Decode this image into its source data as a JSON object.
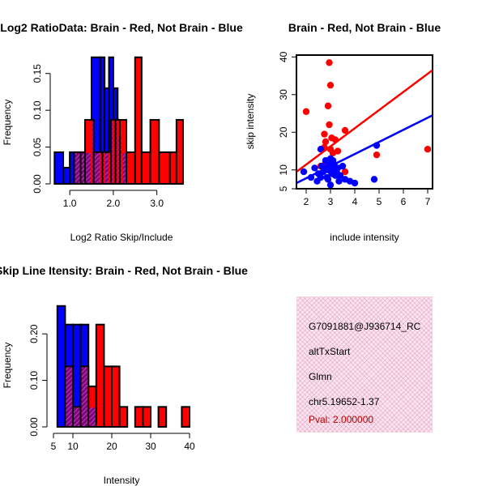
{
  "chart_data": [
    {
      "id": "ratio",
      "type": "histogram",
      "title": "Log2 RatioData: Brain - Red, Not Brain - Blue",
      "xlabel": "Log2 Ratio Skip/Include",
      "ylabel": "Frequency",
      "xlim": [
        0.7,
        3.75
      ],
      "ylim": [
        0,
        0.175
      ],
      "xticks": [
        1.0,
        2.0,
        3.0
      ],
      "xtick_labels": [
        "1.0",
        "2.0",
        "3.0"
      ],
      "yticks": [
        0.0,
        0.05,
        0.1,
        0.15
      ],
      "ytick_labels": [
        "0.00",
        "0.05",
        "0.10",
        "0.15"
      ],
      "series": [
        {
          "name": "Not Brain",
          "color": "#0000ff",
          "bin_edges": [
            0.65,
            0.85,
            1.0,
            1.1,
            1.25,
            1.35,
            1.5,
            1.7,
            1.8,
            1.9,
            2.0,
            2.1,
            2.2,
            2.3
          ],
          "values": [
            0.043,
            0.022,
            0.043,
            0.043,
            0.043,
            0.043,
            0.172,
            0.172,
            0.13,
            0.172,
            0.13,
            0.065,
            0.043
          ]
        },
        {
          "name": "Brain",
          "color": "#ff0000",
          "bin_edges": [
            1.1,
            1.25,
            1.35,
            1.55,
            1.75,
            1.95,
            2.05,
            2.15,
            2.3,
            2.5,
            2.65,
            2.85,
            3.05,
            3.3,
            3.45,
            3.6
          ],
          "values": [
            0.043,
            0.043,
            0.087,
            0.043,
            0.043,
            0.087,
            0.087,
            0.087,
            0.043,
            0.172,
            0.043,
            0.087,
            0.043,
            0.043,
            0.087
          ]
        }
      ]
    },
    {
      "id": "scatter",
      "type": "scatter",
      "title": "Brain - Red, Not Brain - Blue",
      "xlabel": "include intensity",
      "ylabel": "skip intensity",
      "xlim": [
        1.6,
        7.2
      ],
      "ylim": [
        5,
        40.5
      ],
      "xticks": [
        2,
        3,
        4,
        5,
        6,
        7
      ],
      "xtick_labels": [
        "2",
        "3",
        "4",
        "5",
        "6",
        "7"
      ],
      "yticks": [
        5,
        10,
        20,
        30,
        40
      ],
      "ytick_labels": [
        "5",
        "10",
        "20",
        "30",
        "40"
      ],
      "series": [
        {
          "name": "Brain",
          "color": "#ff0000",
          "points": [
            [
              2.0,
              25.5
            ],
            [
              2.95,
              38.5
            ],
            [
              3.0,
              32.5
            ],
            [
              2.9,
              27.0
            ],
            [
              2.95,
              22.0
            ],
            [
              3.05,
              18.5
            ],
            [
              3.2,
              18.0
            ],
            [
              2.75,
              19.5
            ],
            [
              2.8,
              17.5
            ],
            [
              2.75,
              16.0
            ],
            [
              3.0,
              15.5
            ],
            [
              3.1,
              14.5
            ],
            [
              3.3,
              15.0
            ],
            [
              3.6,
              20.5
            ],
            [
              4.9,
              14.0
            ],
            [
              7.0,
              15.5
            ],
            [
              3.6,
              9.5
            ],
            [
              2.8,
              12.0
            ],
            [
              2.6,
              11.0
            ]
          ],
          "fit": [
            [
              1.6,
              9.5
            ],
            [
              7.2,
              36.5
            ]
          ]
        },
        {
          "name": "Not Brain",
          "color": "#0000ff",
          "points": [
            [
              1.9,
              9.5
            ],
            [
              2.2,
              8.0
            ],
            [
              2.35,
              10.5
            ],
            [
              2.45,
              7.0
            ],
            [
              2.5,
              9.0
            ],
            [
              2.6,
              8.0
            ],
            [
              2.65,
              11.0
            ],
            [
              2.7,
              9.5
            ],
            [
              2.75,
              10.5
            ],
            [
              2.8,
              12.5
            ],
            [
              2.85,
              8.0
            ],
            [
              2.9,
              10.0
            ],
            [
              2.95,
              11.5
            ],
            [
              3.0,
              13.0
            ],
            [
              3.05,
              9.0
            ],
            [
              3.1,
              10.0
            ],
            [
              3.15,
              11.5
            ],
            [
              3.2,
              8.5
            ],
            [
              3.25,
              9.5
            ],
            [
              3.3,
              10.5
            ],
            [
              3.35,
              7.0
            ],
            [
              3.5,
              11.0
            ],
            [
              3.6,
              7.5
            ],
            [
              3.8,
              7.0
            ],
            [
              4.0,
              6.5
            ],
            [
              4.8,
              7.5
            ],
            [
              4.9,
              16.5
            ],
            [
              2.6,
              15.5
            ],
            [
              3.0,
              6.0
            ],
            [
              2.9,
              7.5
            ],
            [
              3.1,
              12.5
            ],
            [
              3.4,
              8.5
            ]
          ],
          "fit": [
            [
              1.6,
              6.5
            ],
            [
              7.2,
              24.5
            ]
          ]
        }
      ]
    },
    {
      "id": "intensity",
      "type": "histogram",
      "title": "Skip Line Itensity: Brain - Red, Not Brain - Blue",
      "xlabel": "Intensity",
      "ylabel": "Frequency",
      "xlim": [
        5,
        40
      ],
      "ylim": [
        0,
        0.27
      ],
      "xticks": [
        5,
        10,
        20,
        30,
        40
      ],
      "xtick_labels": [
        "5",
        "10",
        "20",
        "30",
        "40"
      ],
      "yticks": [
        0.0,
        0.1,
        0.2
      ],
      "ytick_labels": [
        "0.00",
        "0.10",
        "0.20"
      ],
      "series": [
        {
          "name": "Not Brain",
          "color": "#0000ff",
          "bin_edges": [
            6,
            8,
            10,
            12,
            14,
            16
          ],
          "values": [
            0.26,
            0.22,
            0.22,
            0.22,
            0.043
          ]
        },
        {
          "name": "Brain",
          "color": "#ff0000",
          "bin_edges": [
            8,
            10,
            12,
            14,
            16,
            18,
            20,
            22,
            24,
            26,
            28,
            30,
            32,
            34,
            36,
            38,
            40
          ],
          "values": [
            0.13,
            0.043,
            0.13,
            0.087,
            0.22,
            0.13,
            0.13,
            0.043,
            0.0,
            0.043,
            0.043,
            0.0,
            0.043,
            0.0,
            0.0,
            0.043
          ]
        }
      ]
    }
  ],
  "info_panel": {
    "id_line": "G7091881@J936714_RC",
    "event_type": "altTxStart",
    "gene": "Glmn",
    "location": "chr5.19652-1.37",
    "pval": "Pval: 2.000000"
  }
}
